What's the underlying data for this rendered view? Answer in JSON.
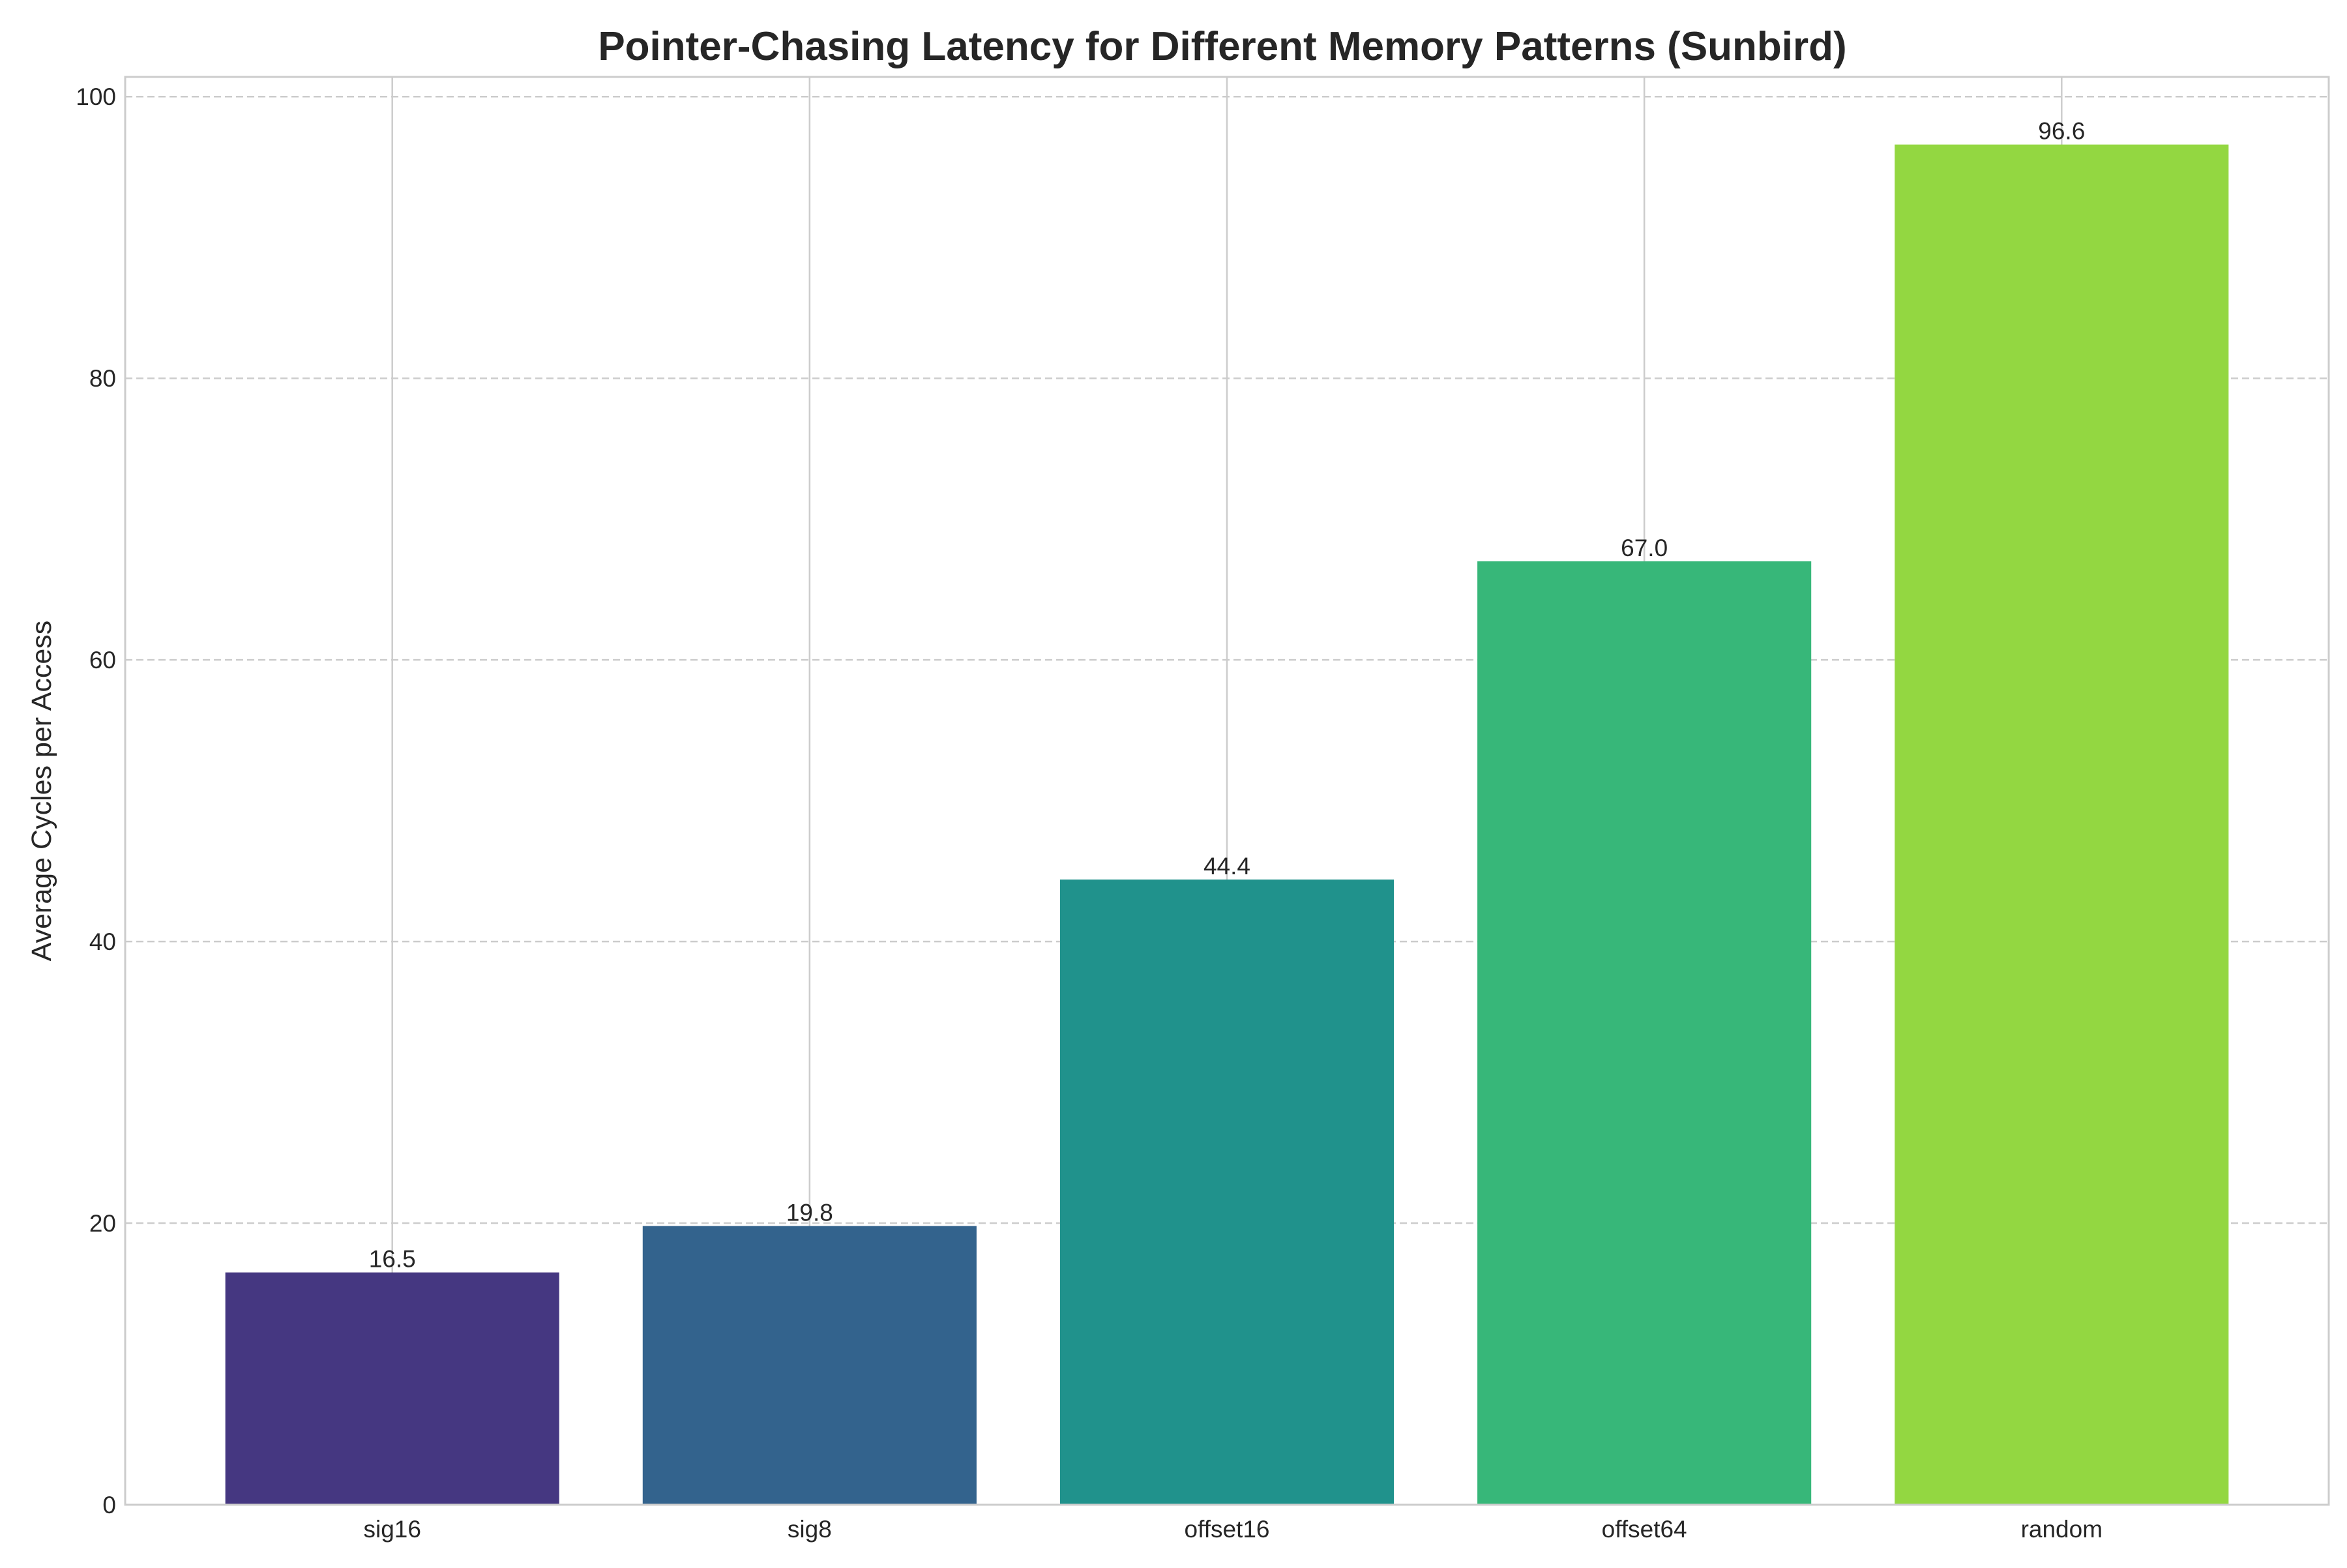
{
  "chart_data": {
    "type": "bar",
    "title": "Pointer-Chasing Latency for Different Memory Patterns (Sunbird)",
    "xlabel": "",
    "ylabel": "Average Cycles per Access",
    "categories": [
      "sig16",
      "sig8",
      "offset16",
      "offset64",
      "random"
    ],
    "values": [
      16.5,
      19.8,
      44.4,
      67.0,
      96.6
    ],
    "data_labels": [
      "16.5",
      "19.8",
      "44.4",
      "67.0",
      "96.6"
    ],
    "colors": [
      "#453781",
      "#33638d",
      "#20928c",
      "#37b779",
      "#93d741"
    ],
    "ylim": [
      0,
      101.4
    ],
    "yticks": [
      0,
      20,
      40,
      60,
      80,
      100
    ],
    "grid": true,
    "legend": "none"
  }
}
